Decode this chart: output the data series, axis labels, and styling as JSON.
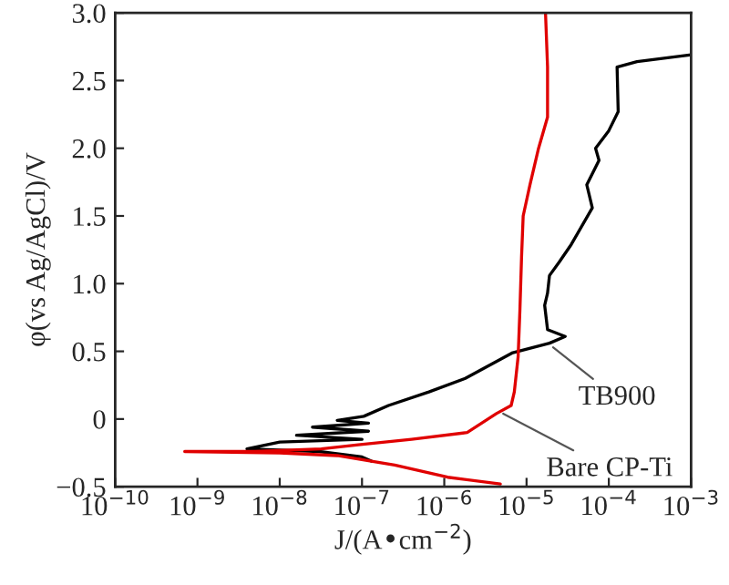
{
  "chart_data": {
    "type": "line",
    "xlabel": "J/(A•cm$^{−2}$)",
    "ylabel": "φ(vs Ag/AgCl)/V",
    "log": "x",
    "xlim": [
      1e-10,
      0.001
    ],
    "xticks": [
      {
        "value": 1e-10,
        "label": "10$^{−10}$"
      },
      {
        "value": 1e-09,
        "label": "10$^{−9}$"
      },
      {
        "value": 1e-08,
        "label": "10$^{−8}$"
      },
      {
        "value": 1e-07,
        "label": "10$^{−7}$"
      },
      {
        "value": 1e-06,
        "label": "10$^{−6}$"
      },
      {
        "value": 1e-05,
        "label": "10$^{−5}$"
      },
      {
        "value": 0.0001,
        "label": "10$^{−4}$"
      },
      {
        "value": 0.001,
        "label": "10$^{−3}$"
      }
    ],
    "ylim": [
      -0.5,
      3.0
    ],
    "yticks": [
      {
        "value": -0.5,
        "label": "−0.5"
      },
      0,
      0.5,
      {
        "value": 1,
        "label": "1.0"
      },
      1.5,
      {
        "value": 2,
        "label": "2.0"
      },
      2.5,
      {
        "value": 3,
        "label": "3.0"
      }
    ],
    "grid": false,
    "legend": false,
    "marker": "none",
    "line_style": "solid",
    "series": [
      {
        "color": "#000000",
        "x": [
          0.001,
          0.00022,
          0.000126,
          0.00013,
          0.0001,
          6.9e-05,
          7.6e-05,
          5.4e-05,
          6.3e-05,
          3.5e-05,
          2.5e-05,
          1.9e-05,
          1.8e-05,
          1.66e-05,
          1.8e-05,
          2.95e-05,
          1.9e-05,
          6.8e-06,
          1.8e-06,
          6.5e-07,
          2.1e-07,
          1.05e-07,
          5e-08,
          1.2e-07,
          2.5e-08,
          1.2e-07,
          1.6e-08,
          1e-07,
          1e-08,
          4e-09,
          3e-08,
          1e-07,
          1.3e-07
        ],
        "values": [
          2.69,
          2.64,
          2.6,
          2.27,
          2.13,
          2.0,
          1.91,
          1.73,
          1.56,
          1.29,
          1.16,
          1.06,
          0.93,
          0.84,
          0.66,
          0.61,
          0.56,
          0.49,
          0.3,
          0.2,
          0.1,
          0.02,
          -0.01,
          -0.03,
          -0.06,
          -0.09,
          -0.12,
          -0.15,
          -0.17,
          -0.22,
          -0.24,
          -0.28,
          -0.31
        ]
      },
      {
        "color": "#e00000",
        "x": [
          1.7e-05,
          1.8e-05,
          1.8e-05,
          1.4e-05,
          1.1e-05,
          9.1e-06,
          8.7e-06,
          8.3e-06,
          7.9e-06,
          7.1e-06,
          6.5e-06,
          4.3e-06,
          1.9e-06,
          4e-07,
          9e-08,
          3.2e-08,
          5e-09,
          7e-10,
          1e-08,
          5e-08,
          2.5e-07,
          1.1e-06,
          4.8e-06
        ],
        "values": [
          3.0,
          2.6,
          2.23,
          2.0,
          1.73,
          1.5,
          1.2,
          0.8,
          0.46,
          0.2,
          0.1,
          0.04,
          -0.1,
          -0.15,
          -0.19,
          -0.22,
          -0.24,
          -0.24,
          -0.25,
          -0.27,
          -0.34,
          -0.43,
          -0.48
        ]
      }
    ],
    "annotations": [
      {
        "text": "TB900",
        "x": 2.1e-05,
        "y": 0.53
      },
      {
        "text": "Bare CP-Ti",
        "x": 5.2e-06,
        "y": 0.04
      }
    ]
  }
}
